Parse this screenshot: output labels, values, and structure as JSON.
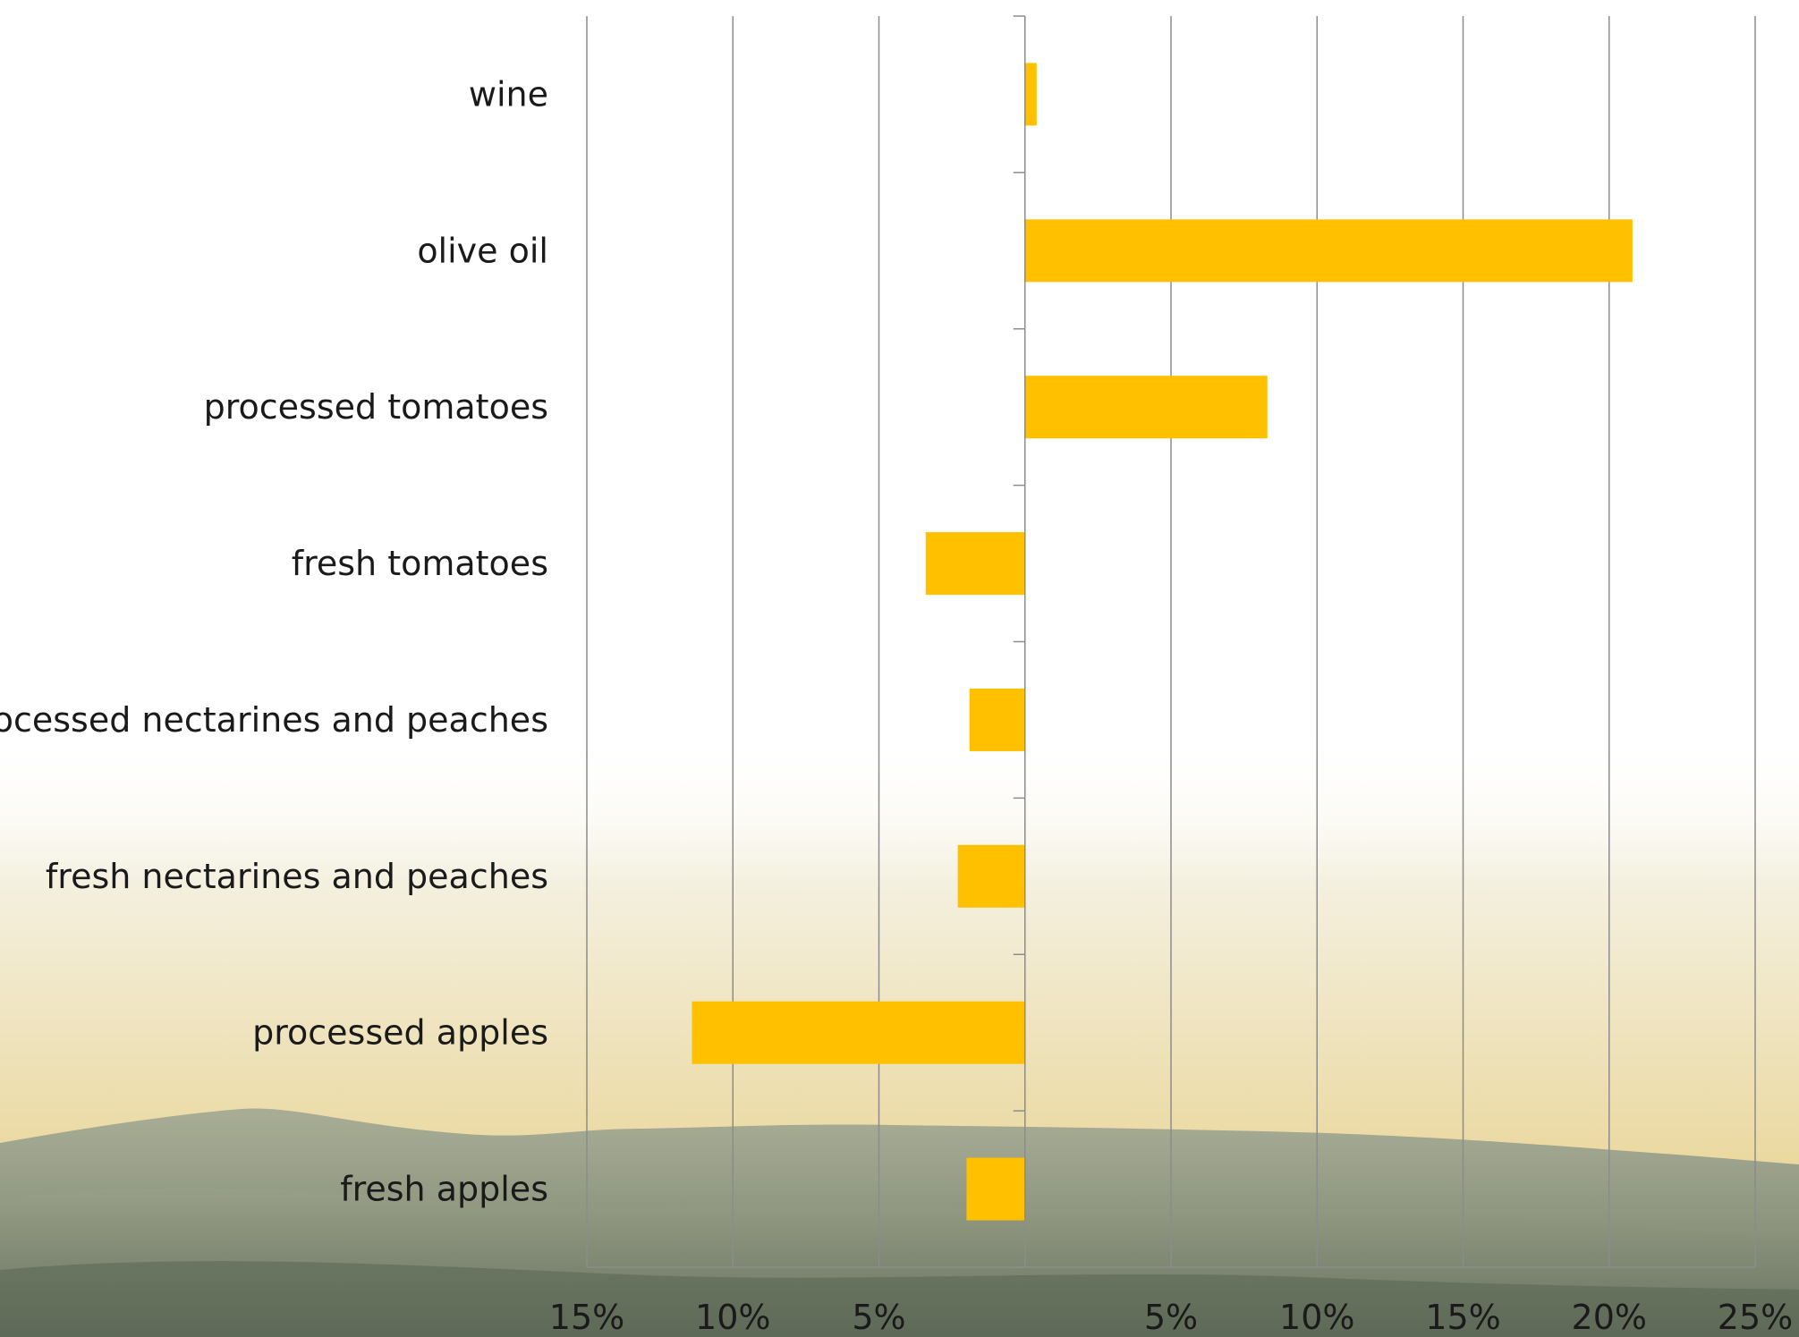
{
  "chart_data": {
    "type": "bar",
    "orientation": "horizontal",
    "categories": [
      "wine",
      "olive oil",
      "processed tomatoes",
      "fresh tomatoes",
      "processed nectarines and peaches",
      "fresh nectarines and peaches",
      "processed apples",
      "fresh apples"
    ],
    "values": [
      0.4,
      20.8,
      8.3,
      -3.4,
      -1.9,
      -2.3,
      -11.4,
      -2.0
    ],
    "xlim": [
      -15,
      25
    ],
    "xticks": [
      -15,
      -10,
      -5,
      5,
      10,
      15,
      20,
      25
    ],
    "xtick_labels": [
      "15%",
      "10%",
      "5%",
      "5%",
      "10%",
      "15%",
      "20%",
      "25%"
    ],
    "grid": "vertical",
    "bar_color": "#FFC000",
    "gridline_color": "#8c8c8c",
    "background": "photo of hilly landscape at sunset (lower half)"
  }
}
